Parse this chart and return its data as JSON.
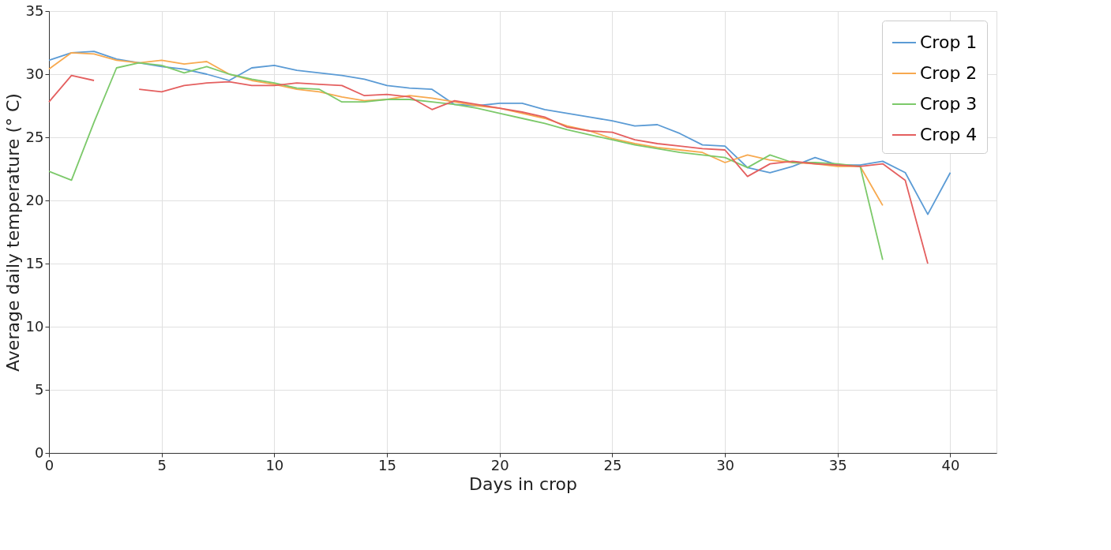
{
  "chart_data": {
    "type": "line",
    "xlabel": "Days in crop",
    "ylabel": "Average daily temperature (° C)",
    "xlim": [
      0,
      42.05
    ],
    "ylim": [
      0,
      35
    ],
    "xticks": [
      0,
      5,
      10,
      15,
      20,
      25,
      30,
      35,
      40
    ],
    "yticks": [
      0,
      5,
      10,
      15,
      20,
      25,
      30,
      35
    ],
    "grid": true,
    "legend": "top right",
    "line_style": "solid",
    "x": [
      0,
      1,
      2,
      3,
      4,
      5,
      6,
      7,
      8,
      9,
      10,
      11,
      12,
      13,
      14,
      15,
      16,
      17,
      18,
      19,
      20,
      21,
      22,
      23,
      24,
      25,
      26,
      27,
      28,
      29,
      30,
      31,
      32,
      33,
      34,
      35,
      36,
      37,
      38,
      39,
      40
    ],
    "series": [
      {
        "name": "Crop 1",
        "color": "#5b9bd5",
        "values": [
          31.1,
          31.7,
          31.8,
          31.2,
          30.9,
          30.6,
          30.4,
          30.0,
          29.5,
          30.5,
          30.7,
          30.3,
          30.1,
          29.9,
          29.6,
          29.1,
          28.9,
          28.8,
          27.6,
          27.5,
          27.7,
          27.7,
          27.2,
          26.9,
          26.6,
          26.3,
          25.9,
          26.0,
          25.3,
          24.4,
          24.3,
          22.6,
          22.2,
          22.7,
          23.4,
          22.8,
          22.8,
          23.1,
          22.2,
          18.9,
          22.2
        ]
      },
      {
        "name": "Crop 2",
        "color": "#f7a94f",
        "values": [
          30.4,
          31.7,
          31.6,
          31.1,
          30.9,
          31.1,
          30.8,
          31.0,
          30.0,
          29.5,
          29.2,
          28.8,
          28.6,
          28.2,
          27.9,
          28.0,
          28.3,
          28.1,
          27.8,
          27.5,
          27.3,
          26.9,
          26.5,
          25.9,
          25.5,
          24.9,
          24.5,
          24.2,
          24.0,
          23.8,
          23.0,
          23.6,
          23.2,
          23.0,
          22.9,
          22.7,
          22.7,
          19.6,
          null,
          null,
          null
        ]
      },
      {
        "name": "Crop 3",
        "color": "#7cc96a",
        "values": [
          22.3,
          21.6,
          26.2,
          30.5,
          30.9,
          30.7,
          30.1,
          30.6,
          30.0,
          29.6,
          29.3,
          28.9,
          28.8,
          27.8,
          27.8,
          28.0,
          28.0,
          27.8,
          27.6,
          27.3,
          26.9,
          26.5,
          26.1,
          25.6,
          25.2,
          24.8,
          24.4,
          24.1,
          23.8,
          23.6,
          23.4,
          22.6,
          23.6,
          23.0,
          23.0,
          22.9,
          22.7,
          15.3,
          null,
          null,
          null
        ]
      },
      {
        "name": "Crop 4",
        "color": "#e45f5f",
        "values": [
          27.8,
          29.9,
          29.5,
          null,
          28.8,
          28.6,
          29.1,
          29.3,
          29.4,
          29.1,
          29.1,
          29.3,
          29.2,
          29.1,
          28.3,
          28.4,
          28.2,
          27.2,
          27.9,
          27.6,
          27.3,
          27.0,
          26.6,
          25.8,
          25.5,
          25.4,
          24.8,
          24.5,
          24.3,
          24.1,
          24.0,
          21.9,
          22.9,
          23.1,
          22.9,
          22.8,
          22.7,
          22.9,
          21.6,
          15.0,
          null
        ]
      }
    ]
  }
}
